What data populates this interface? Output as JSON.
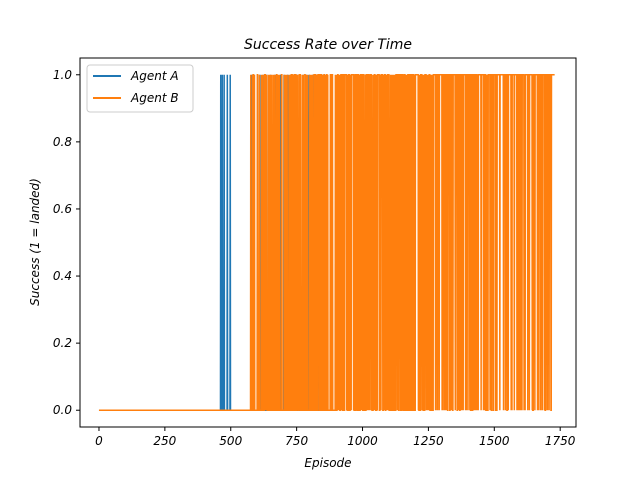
{
  "chart_data": {
    "type": "line",
    "title": "Success Rate over Time",
    "xlabel": "Episode",
    "ylabel": "Success (1 = landed)",
    "xlim": [
      -72,
      1810
    ],
    "ylim": [
      -0.05,
      1.05
    ],
    "xticks": [
      0,
      250,
      500,
      750,
      1000,
      1250,
      1500,
      1750
    ],
    "yticks": [
      0.0,
      0.2,
      0.4,
      0.6,
      0.8,
      1.0
    ],
    "xtick_labels": [
      "0",
      "250",
      "500",
      "750",
      "1000",
      "1250",
      "1500",
      "1750"
    ],
    "ytick_labels": [
      "0.0",
      "0.2",
      "0.4",
      "0.6",
      "0.8",
      "1.0"
    ],
    "legend": {
      "position": "top-left"
    },
    "series": [
      {
        "name": "Agent A",
        "color": "#1f77b4",
        "episodes": 865,
        "success_episodes": [
          462,
          468,
          475,
          487,
          498,
          579,
          588,
          602,
          611,
          623,
          637,
          651,
          668,
          689,
          702,
          716,
          728,
          740,
          752,
          763,
          775,
          787,
          798,
          811,
          824,
          836,
          848,
          859,
          864
        ]
      },
      {
        "name": "Agent B",
        "color": "#ff7f0e",
        "episodes": 1730,
        "success_after_episode": 570
      }
    ]
  }
}
